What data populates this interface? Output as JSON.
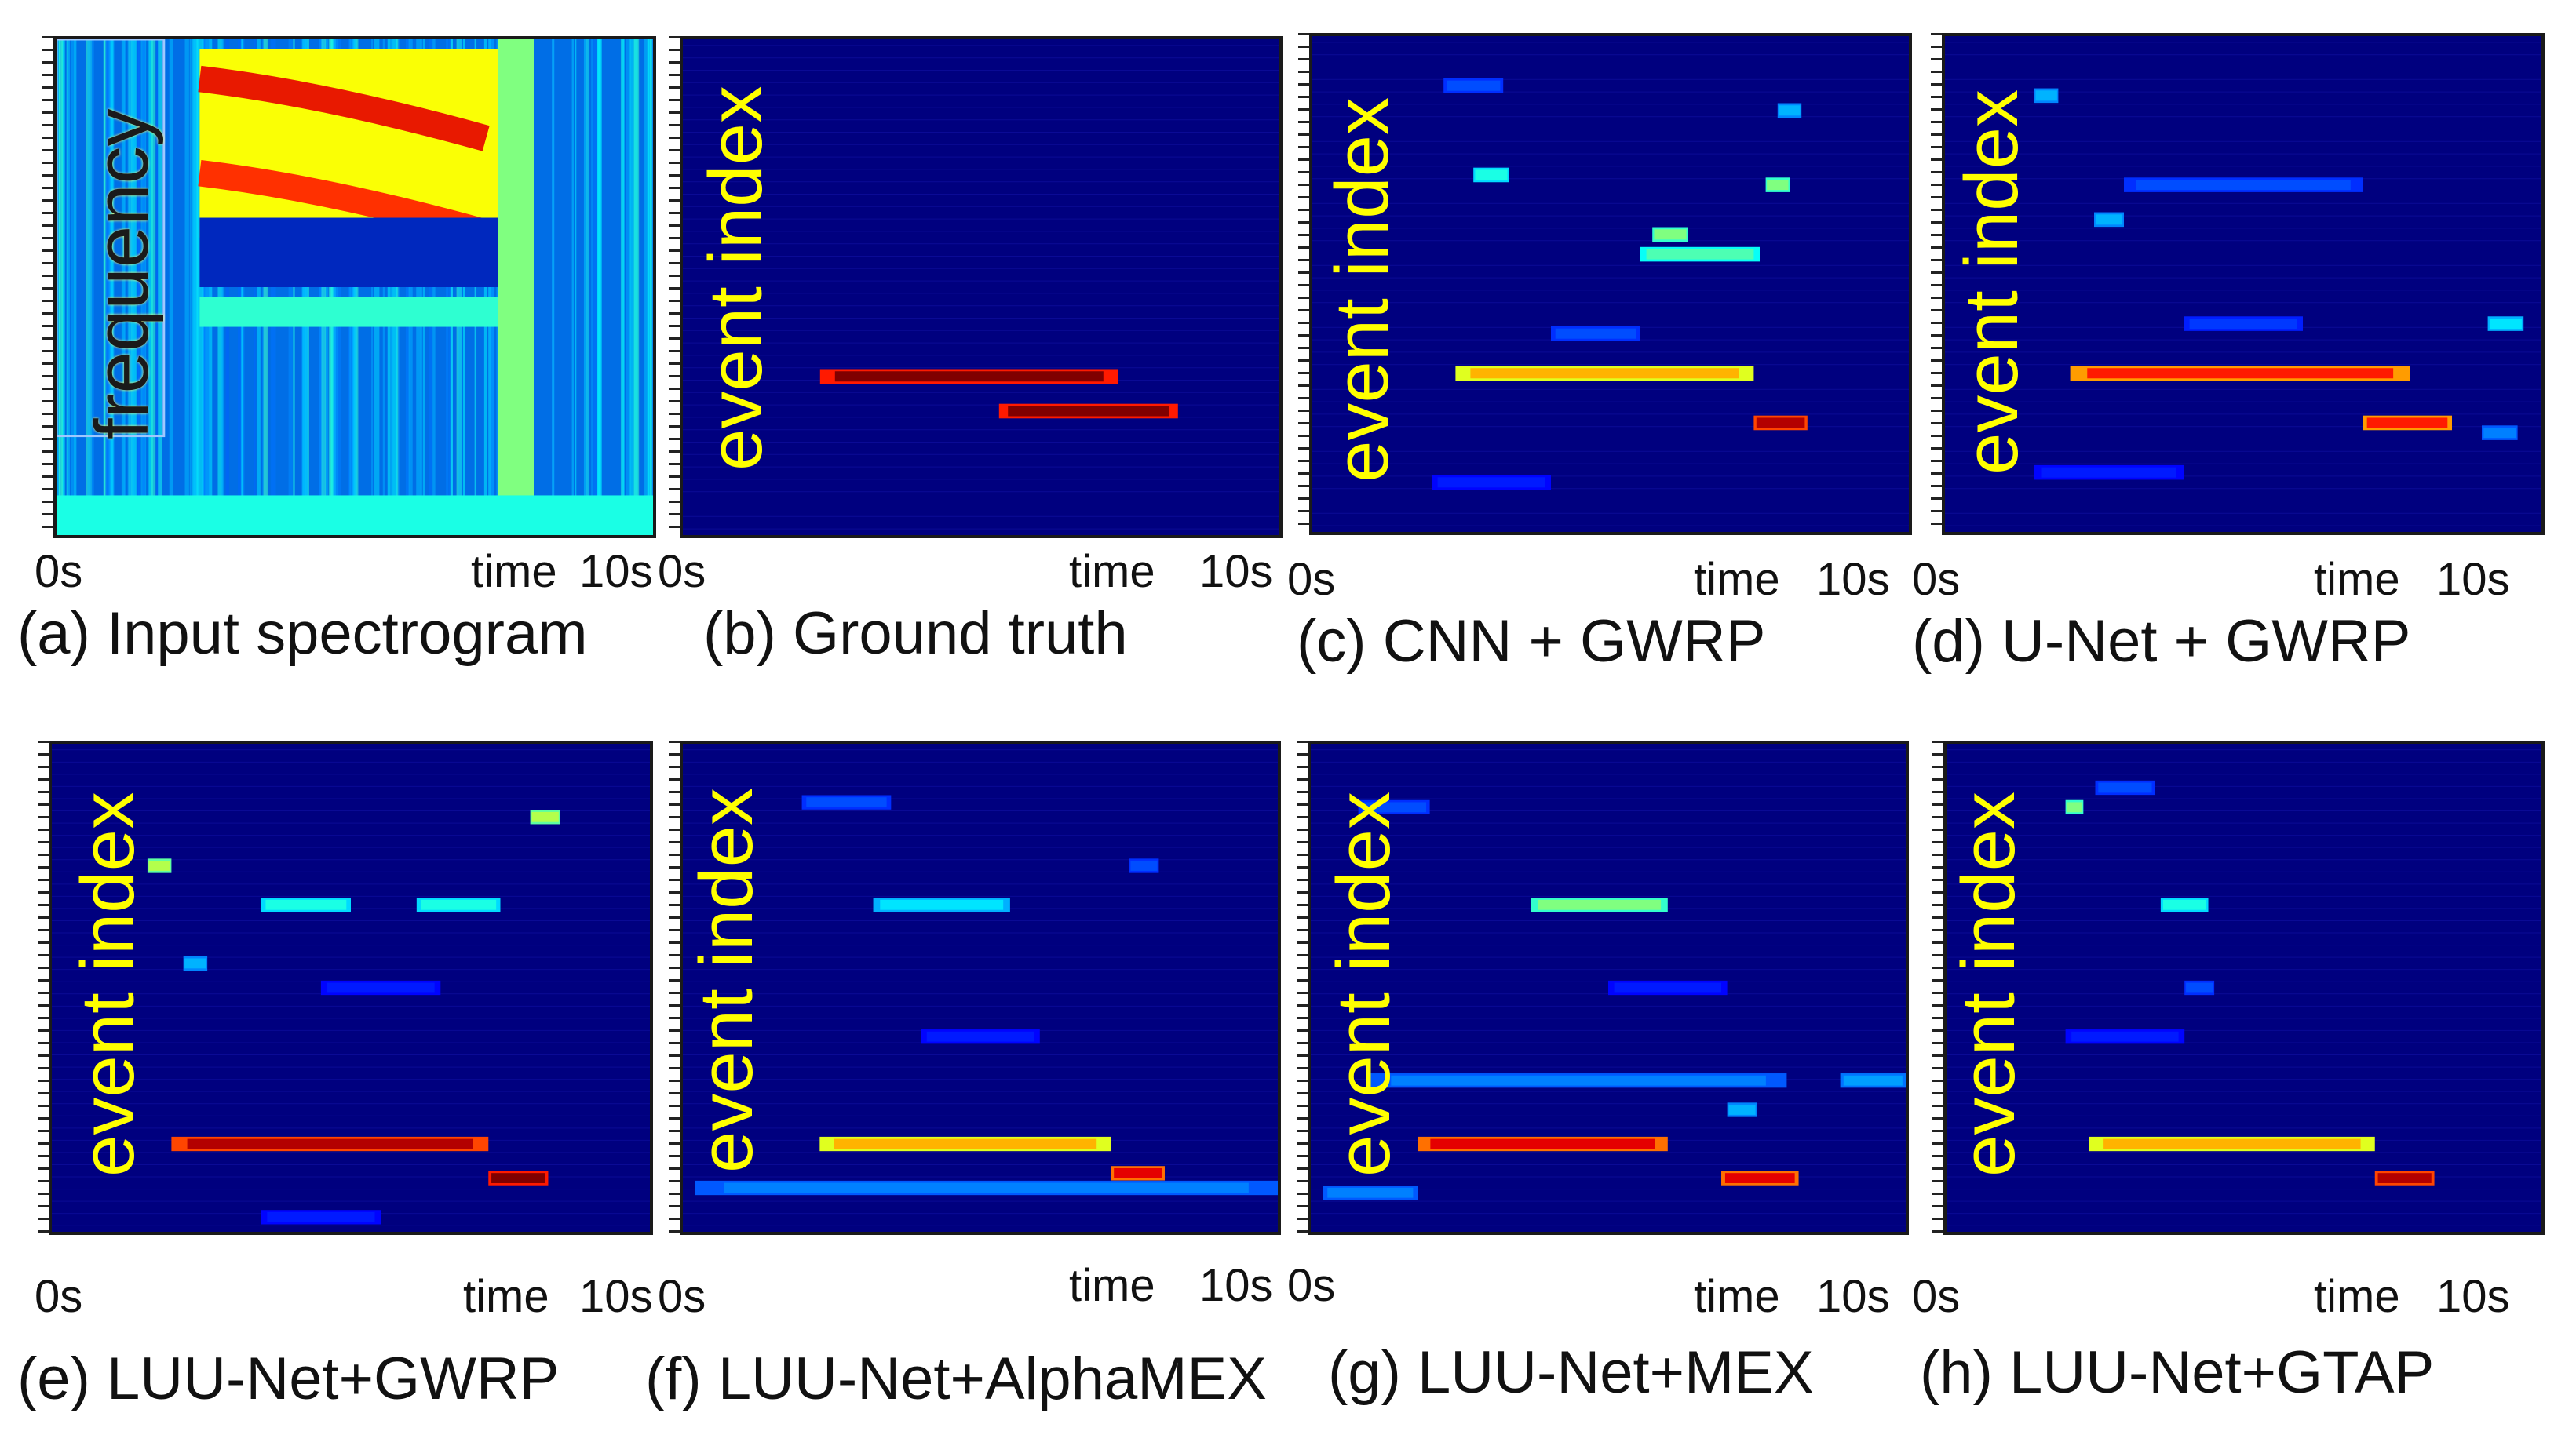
{
  "chart_data": [
    {
      "type": "heatmap",
      "caption": "(a) Input spectrogram",
      "ylabel": "frequency",
      "x_tick_labels": [
        "0s",
        "time",
        "10s"
      ],
      "xlim": [
        0,
        10
      ],
      "colormap": "jet",
      "content": "spectrogram"
    },
    {
      "type": "heatmap",
      "caption": "(b) Ground truth",
      "ylabel": "event index",
      "x_tick_labels": [
        "0s",
        "time",
        "10s"
      ],
      "xlim": [
        0,
        10
      ],
      "colormap": "jet",
      "events": [
        {
          "row": 0.68,
          "start": 2.3,
          "end": 7.3,
          "value": 1.0
        },
        {
          "row": 0.75,
          "start": 5.3,
          "end": 8.3,
          "value": 1.0
        }
      ]
    },
    {
      "type": "heatmap",
      "caption": "(c) CNN + GWRP",
      "ylabel": "event index",
      "x_tick_labels": [
        "0s",
        "time",
        "10s"
      ],
      "xlim": [
        0,
        10
      ],
      "colormap": "jet",
      "events": [
        {
          "row": 0.68,
          "start": 2.4,
          "end": 7.4,
          "value": 0.7
        },
        {
          "row": 0.78,
          "start": 7.4,
          "end": 8.3,
          "value": 0.95
        },
        {
          "row": 0.44,
          "start": 5.5,
          "end": 7.5,
          "value": 0.45
        },
        {
          "row": 0.4,
          "start": 5.7,
          "end": 6.3,
          "value": 0.5
        },
        {
          "row": 0.28,
          "start": 2.7,
          "end": 3.3,
          "value": 0.4
        },
        {
          "row": 0.3,
          "start": 7.6,
          "end": 8.0,
          "value": 0.5
        },
        {
          "row": 0.1,
          "start": 2.2,
          "end": 3.2,
          "value": 0.2
        },
        {
          "row": 0.15,
          "start": 7.8,
          "end": 8.2,
          "value": 0.3
        },
        {
          "row": 0.6,
          "start": 4.0,
          "end": 5.5,
          "value": 0.2
        },
        {
          "row": 0.9,
          "start": 2.0,
          "end": 4.0,
          "value": 0.15
        }
      ]
    },
    {
      "type": "heatmap",
      "caption": "(d) U-Net + GWRP",
      "ylabel": "event index",
      "x_tick_labels": [
        "0s",
        "time",
        "10s"
      ],
      "xlim": [
        0,
        10
      ],
      "colormap": "jet",
      "events": [
        {
          "row": 0.68,
          "start": 2.1,
          "end": 7.8,
          "value": 0.85
        },
        {
          "row": 0.78,
          "start": 7.0,
          "end": 8.5,
          "value": 0.85
        },
        {
          "row": 0.3,
          "start": 3.0,
          "end": 7.0,
          "value": 0.2
        },
        {
          "row": 0.37,
          "start": 2.5,
          "end": 3.0,
          "value": 0.3
        },
        {
          "row": 0.58,
          "start": 9.1,
          "end": 9.7,
          "value": 0.35
        },
        {
          "row": 0.58,
          "start": 4.0,
          "end": 6.0,
          "value": 0.18
        },
        {
          "row": 0.8,
          "start": 9.0,
          "end": 9.6,
          "value": 0.25
        },
        {
          "row": 0.12,
          "start": 1.5,
          "end": 1.9,
          "value": 0.3
        },
        {
          "row": 0.88,
          "start": 1.5,
          "end": 4.0,
          "value": 0.15
        }
      ]
    },
    {
      "type": "heatmap",
      "caption": "(e) LUU-Net+GWRP",
      "ylabel": "event index",
      "x_tick_labels": [
        "0s",
        "time",
        "10s"
      ],
      "xlim": [
        0,
        10
      ],
      "colormap": "jet",
      "events": [
        {
          "row": 0.82,
          "start": 2.0,
          "end": 7.3,
          "value": 0.95
        },
        {
          "row": 0.89,
          "start": 7.3,
          "end": 8.3,
          "value": 1.0
        },
        {
          "row": 0.33,
          "start": 3.5,
          "end": 5.0,
          "value": 0.4
        },
        {
          "row": 0.33,
          "start": 6.1,
          "end": 7.5,
          "value": 0.4
        },
        {
          "row": 0.25,
          "start": 1.6,
          "end": 2.0,
          "value": 0.55
        },
        {
          "row": 0.15,
          "start": 8.0,
          "end": 8.5,
          "value": 0.55
        },
        {
          "row": 0.45,
          "start": 2.2,
          "end": 2.6,
          "value": 0.3
        },
        {
          "row": 0.5,
          "start": 4.5,
          "end": 6.5,
          "value": 0.15
        },
        {
          "row": 0.97,
          "start": 3.5,
          "end": 5.5,
          "value": 0.15
        }
      ]
    },
    {
      "type": "heatmap",
      "caption": "(f) LUU-Net+AlphaMEX",
      "ylabel": "event index",
      "x_tick_labels": [
        "0s",
        "time",
        "10s"
      ],
      "xlim": [
        0,
        10
      ],
      "colormap": "jet",
      "events": [
        {
          "row": 0.82,
          "start": 2.3,
          "end": 7.2,
          "value": 0.7
        },
        {
          "row": 0.88,
          "start": 7.2,
          "end": 8.1,
          "value": 0.9
        },
        {
          "row": 0.91,
          "start": 0.2,
          "end": 10.0,
          "value": 0.25
        },
        {
          "row": 0.33,
          "start": 3.2,
          "end": 5.5,
          "value": 0.35
        },
        {
          "row": 0.12,
          "start": 2.0,
          "end": 3.5,
          "value": 0.2
        },
        {
          "row": 0.6,
          "start": 4.0,
          "end": 6.0,
          "value": 0.15
        },
        {
          "row": 0.25,
          "start": 7.5,
          "end": 8.0,
          "value": 0.2
        }
      ]
    },
    {
      "type": "heatmap",
      "caption": "(g) LUU-Net+MEX",
      "ylabel": "event index",
      "x_tick_labels": [
        "0s",
        "time",
        "10s"
      ],
      "xlim": [
        0,
        10
      ],
      "colormap": "jet",
      "events": [
        {
          "row": 0.82,
          "start": 1.8,
          "end": 6.0,
          "value": 0.9
        },
        {
          "row": 0.89,
          "start": 6.9,
          "end": 8.2,
          "value": 0.9
        },
        {
          "row": 0.69,
          "start": 1.0,
          "end": 8.0,
          "value": 0.25
        },
        {
          "row": 0.69,
          "start": 8.9,
          "end": 10.0,
          "value": 0.28
        },
        {
          "row": 0.33,
          "start": 3.7,
          "end": 6.0,
          "value": 0.5
        },
        {
          "row": 0.92,
          "start": 0.2,
          "end": 1.8,
          "value": 0.25
        },
        {
          "row": 0.13,
          "start": 0.8,
          "end": 2.0,
          "value": 0.2
        },
        {
          "row": 0.75,
          "start": 7.0,
          "end": 7.5,
          "value": 0.3
        },
        {
          "row": 0.5,
          "start": 5.0,
          "end": 7.0,
          "value": 0.15
        }
      ]
    },
    {
      "type": "heatmap",
      "caption": "(h) LUU-Net+GTAP",
      "ylabel": "event index",
      "x_tick_labels": [
        "0s",
        "time",
        "10s"
      ],
      "xlim": [
        0,
        10
      ],
      "colormap": "jet",
      "events": [
        {
          "row": 0.82,
          "start": 2.4,
          "end": 7.2,
          "value": 0.7
        },
        {
          "row": 0.89,
          "start": 7.2,
          "end": 8.2,
          "value": 0.95
        },
        {
          "row": 0.33,
          "start": 3.6,
          "end": 4.4,
          "value": 0.4
        },
        {
          "row": 0.13,
          "start": 2.0,
          "end": 2.3,
          "value": 0.5
        },
        {
          "row": 0.09,
          "start": 2.5,
          "end": 3.5,
          "value": 0.2
        },
        {
          "row": 0.5,
          "start": 4.0,
          "end": 4.5,
          "value": 0.2
        },
        {
          "row": 0.6,
          "start": 2.0,
          "end": 4.0,
          "value": 0.15
        }
      ]
    }
  ]
}
